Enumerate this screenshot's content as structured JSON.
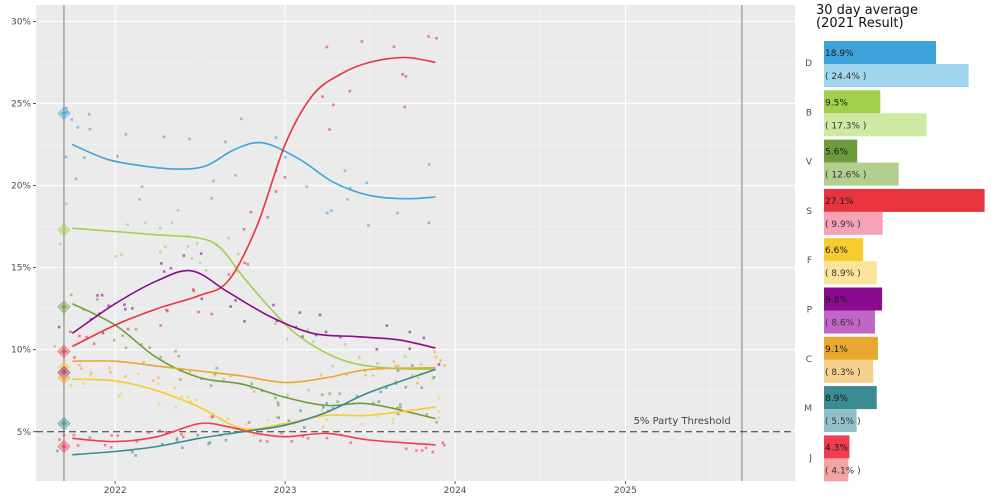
{
  "chart_data": [
    {
      "type": "line",
      "subtype": "poll trend with scatter points and smoothed lines",
      "x_axis": {
        "type": "date",
        "ticks": [
          "2022",
          "2023",
          "2024",
          "2025"
        ],
        "range": [
          "2021-07-15",
          "2025-12-31"
        ]
      },
      "y_axis": {
        "ticks": [
          "5%",
          "10%",
          "15%",
          "20%",
          "25%",
          "30%"
        ],
        "range": [
          2,
          31
        ]
      },
      "election_lines": [
        "2021-09-13",
        "2025-09-08"
      ],
      "threshold": {
        "value": 5,
        "label": "5% Party Threshold"
      },
      "grid": true,
      "background": "#ebebeb",
      "series": [
        {
          "party": "D",
          "color": "#3fa3db",
          "result_2021": 24.4,
          "x": [
            "2021-10-01",
            "2021-12-15",
            "2022-03-01",
            "2022-05-15",
            "2022-07-15",
            "2022-09-15",
            "2022-11-15",
            "2023-02-01",
            "2023-04-15",
            "2023-07-01",
            "2023-09-15",
            "2023-11-20"
          ],
          "y": [
            22.5,
            21.6,
            21.2,
            21.0,
            21.2,
            22.2,
            22.6,
            21.6,
            20.2,
            19.4,
            19.2,
            19.3
          ]
        },
        {
          "party": "B",
          "color": "#a2cf4d",
          "result_2021": 17.3,
          "x": [
            "2021-10-01",
            "2022-01-01",
            "2022-04-01",
            "2022-07-01",
            "2022-08-15",
            "2022-10-01",
            "2022-12-01",
            "2023-02-01",
            "2023-05-01",
            "2023-08-01",
            "2023-11-20"
          ],
          "y": [
            17.4,
            17.2,
            17.0,
            16.8,
            16.2,
            14.5,
            12.5,
            10.8,
            9.4,
            8.9,
            8.8
          ]
        },
        {
          "party": "V",
          "color": "#6e9c3d",
          "result_2021": 12.6,
          "x": [
            "2021-10-01",
            "2022-01-01",
            "2022-04-01",
            "2022-07-01",
            "2022-10-01",
            "2023-01-01",
            "2023-04-01",
            "2023-07-01",
            "2023-11-20"
          ],
          "y": [
            12.8,
            11.5,
            9.5,
            8.3,
            7.9,
            7.1,
            6.6,
            6.7,
            5.8
          ]
        },
        {
          "party": "S",
          "color": "#e8343f",
          "result_2021": 9.9,
          "x": [
            "2021-10-01",
            "2022-01-01",
            "2022-04-01",
            "2022-07-01",
            "2022-09-01",
            "2022-11-01",
            "2023-01-01",
            "2023-03-01",
            "2023-05-01",
            "2023-07-01",
            "2023-09-15",
            "2023-11-20"
          ],
          "y": [
            10.2,
            11.5,
            12.5,
            13.3,
            14.2,
            17.5,
            22.5,
            25.5,
            26.8,
            27.5,
            27.8,
            27.5
          ]
        },
        {
          "party": "F",
          "color": "#f7cc2f",
          "result_2021": 8.9,
          "x": [
            "2021-10-01",
            "2022-01-01",
            "2022-04-01",
            "2022-07-01",
            "2022-10-01",
            "2023-01-01",
            "2023-04-01",
            "2023-07-01",
            "2023-11-20"
          ],
          "y": [
            8.2,
            8.1,
            7.5,
            6.5,
            5.2,
            5.5,
            6.0,
            6.0,
            6.5
          ]
        },
        {
          "party": "P",
          "color": "#8b0b8f",
          "result_2021": 8.6,
          "x": [
            "2021-10-01",
            "2022-01-01",
            "2022-04-01",
            "2022-06-15",
            "2022-09-01",
            "2022-12-01",
            "2023-03-01",
            "2023-06-01",
            "2023-09-01",
            "2023-11-20"
          ],
          "y": [
            11.0,
            12.8,
            14.2,
            14.8,
            13.5,
            12.0,
            11.0,
            10.8,
            10.6,
            10.1
          ]
        },
        {
          "party": "C",
          "color": "#e9a830",
          "result_2021": 8.3,
          "x": [
            "2021-10-01",
            "2022-01-01",
            "2022-04-01",
            "2022-07-01",
            "2022-10-01",
            "2023-01-01",
            "2023-04-01",
            "2023-07-01",
            "2023-11-20"
          ],
          "y": [
            9.3,
            9.3,
            9.0,
            8.7,
            8.4,
            8.0,
            8.3,
            8.8,
            8.9
          ]
        },
        {
          "party": "M",
          "color": "#3a8b92",
          "result_2021": 5.5,
          "x": [
            "2021-10-01",
            "2022-01-01",
            "2022-04-01",
            "2022-07-01",
            "2022-10-01",
            "2023-01-01",
            "2023-04-01",
            "2023-07-01",
            "2023-11-20"
          ],
          "y": [
            3.6,
            3.8,
            4.1,
            4.6,
            5.0,
            5.4,
            6.2,
            7.4,
            8.8
          ]
        },
        {
          "party": "J",
          "color": "#ee3e4f",
          "result_2021": 4.1,
          "x": [
            "2021-10-01",
            "2022-01-01",
            "2022-04-01",
            "2022-07-01",
            "2022-09-01",
            "2022-11-01",
            "2023-01-01",
            "2023-04-01",
            "2023-07-01",
            "2023-11-20"
          ],
          "y": [
            4.6,
            4.4,
            4.7,
            5.5,
            5.3,
            4.9,
            4.7,
            4.9,
            4.5,
            4.2
          ]
        }
      ]
    },
    {
      "type": "bar",
      "title": "30 day average\n(2021 Result)",
      "categories": [
        "D",
        "B",
        "V",
        "S",
        "F",
        "P",
        "C",
        "M",
        "J"
      ],
      "x_range": [
        0,
        27.5
      ],
      "series": [
        {
          "values": [
            18.9,
            9.5,
            5.6,
            27.1,
            6.6,
            9.8,
            9.1,
            8.9,
            4.3
          ],
          "labels": [
            "18.9%",
            "9.5%",
            "5.6%",
            "27.1%",
            "6.6%",
            "9.8%",
            "9.1%",
            "8.9%",
            "4.3%"
          ],
          "colors": [
            "#3fa3db",
            "#a2cf4d",
            "#6e9c3d",
            "#e8343f",
            "#f7cc2f",
            "#8b0b8f",
            "#e9a830",
            "#3a8b92",
            "#ee3e4f"
          ]
        },
        {
          "values": [
            24.4,
            17.3,
            12.6,
            9.9,
            8.9,
            8.6,
            8.3,
            5.5,
            4.1
          ],
          "labels": [
            "( 24.4% )",
            "( 17.3% )",
            "( 12.6% )",
            "( 9.9% )",
            "( 8.9% )",
            "( 8.6% )",
            "( 8.3% )",
            "( 5.5% )",
            "( 4.1% )"
          ],
          "colors": [
            "#a0d5ee",
            "#cee9a3",
            "#b2cf8f",
            "#f6a3b8",
            "#fbe39a",
            "#c166c7",
            "#f6d18d",
            "#93c0c6",
            "#f3a3a3"
          ]
        }
      ]
    }
  ]
}
